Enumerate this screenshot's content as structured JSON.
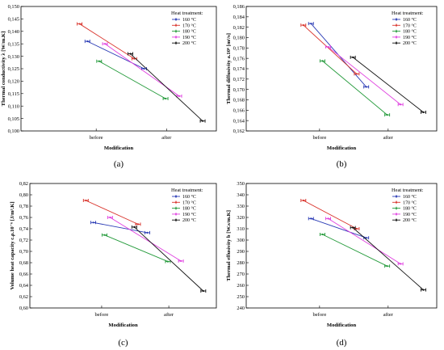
{
  "chart_data": [
    {
      "type": "line",
      "panel_label": "(a)",
      "xlabel": "Modification",
      "ylabel": "Thermal conductivity λ [W/m.K]",
      "categories": [
        "before",
        "after"
      ],
      "ylim": [
        0.1,
        0.15
      ],
      "yticks": [
        "0,100",
        "0,105",
        "0,110",
        "0,115",
        "0,120",
        "0,125",
        "0,130",
        "0,135",
        "0,140",
        "0,145",
        "0,150"
      ],
      "legend_title": "Heat treatment:",
      "legend_position": "top-right",
      "grid": false,
      "series": [
        {
          "name": "160 °C",
          "color": "#2a3bb5",
          "values": [
            0.136,
            0.125
          ]
        },
        {
          "name": "170 °C",
          "color": "#d9332b",
          "values": [
            0.143,
            0.129
          ]
        },
        {
          "name": "180 °C",
          "color": "#239a3a",
          "values": [
            0.128,
            0.113
          ]
        },
        {
          "name": "190 °C",
          "color": "#e040e0",
          "values": [
            0.135,
            0.114
          ]
        },
        {
          "name": "200 °C",
          "color": "#111111",
          "values": [
            0.131,
            0.104
          ]
        }
      ]
    },
    {
      "type": "line",
      "panel_label": "(b)",
      "xlabel": "Modification",
      "ylabel": "Thermal diffusivity a.10⁶ [m²/s]",
      "categories": [
        "before",
        "after"
      ],
      "ylim": [
        0.162,
        0.186
      ],
      "yticks": [
        "0,162",
        "0,164",
        "0,166",
        "0,168",
        "0,170",
        "0,172",
        "0,174",
        "0,176",
        "0,178",
        "0,180",
        "0,182",
        "0,184",
        "0,186"
      ],
      "legend_title": "Heat treatment:",
      "legend_position": "top-right",
      "grid": false,
      "series": [
        {
          "name": "160 °C",
          "color": "#2a3bb5",
          "values": [
            0.1827,
            0.1705
          ]
        },
        {
          "name": "170 °C",
          "color": "#d9332b",
          "values": [
            0.1824,
            0.173
          ]
        },
        {
          "name": "180 °C",
          "color": "#239a3a",
          "values": [
            0.1755,
            0.1651
          ]
        },
        {
          "name": "190 °C",
          "color": "#e040e0",
          "values": [
            0.1782,
            0.1671
          ]
        },
        {
          "name": "200 °C",
          "color": "#111111",
          "values": [
            0.1762,
            0.1656
          ]
        }
      ]
    },
    {
      "type": "line",
      "panel_label": "(c)",
      "xlabel": "Modification",
      "ylabel": "Volume heat capacity c.ρ.10⁻⁶ [J/m³.K]",
      "categories": [
        "before",
        "after"
      ],
      "ylim": [
        0.6,
        0.82
      ],
      "yticks": [
        "0,60",
        "0,62",
        "0,64",
        "0,66",
        "0,68",
        "0,70",
        "0,72",
        "0,74",
        "0,76",
        "0,78",
        "0,80",
        "0,82"
      ],
      "legend_title": "Heat treatment:",
      "legend_position": "top-right",
      "grid": false,
      "series": [
        {
          "name": "160 °C",
          "color": "#2a3bb5",
          "values": [
            0.751,
            0.733
          ]
        },
        {
          "name": "170 °C",
          "color": "#d9332b",
          "values": [
            0.79,
            0.748
          ]
        },
        {
          "name": "180 °C",
          "color": "#239a3a",
          "values": [
            0.729,
            0.682
          ]
        },
        {
          "name": "190 °C",
          "color": "#e040e0",
          "values": [
            0.76,
            0.683
          ]
        },
        {
          "name": "200 °C",
          "color": "#111111",
          "values": [
            0.743,
            0.63
          ]
        }
      ]
    },
    {
      "type": "line",
      "panel_label": "(d)",
      "xlabel": "Modification",
      "ylabel": "Thermal effusivity b [W.s/m.K]",
      "categories": [
        "before",
        "after"
      ],
      "ylim": [
        240,
        350
      ],
      "yticks": [
        "240",
        "250",
        "260",
        "270",
        "280",
        "290",
        "300",
        "310",
        "320",
        "330",
        "340",
        "350"
      ],
      "legend_title": "Heat treatment:",
      "legend_position": "top-right",
      "grid": false,
      "series": [
        {
          "name": "160 °C",
          "color": "#2a3bb5",
          "values": [
            319,
            302
          ]
        },
        {
          "name": "170 °C",
          "color": "#d9332b",
          "values": [
            335,
            310
          ]
        },
        {
          "name": "180 °C",
          "color": "#239a3a",
          "values": [
            305,
            277
          ]
        },
        {
          "name": "190 °C",
          "color": "#e040e0",
          "values": [
            319,
            279
          ]
        },
        {
          "name": "200 °C",
          "color": "#111111",
          "values": [
            311,
            256
          ]
        }
      ]
    }
  ]
}
